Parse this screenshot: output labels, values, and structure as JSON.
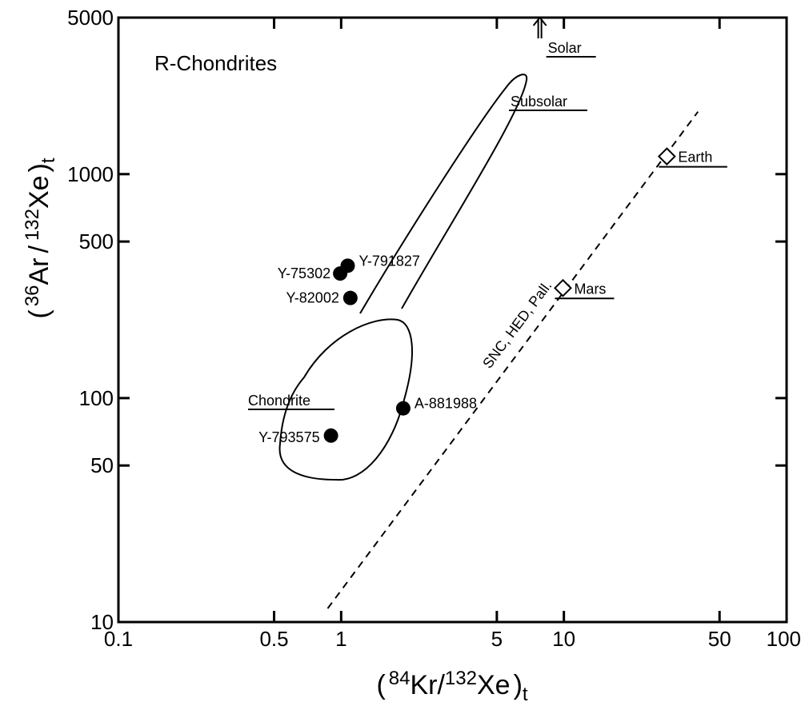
{
  "chart_data": {
    "type": "scatter",
    "title": "R-Chondrites",
    "xlabel": {
      "pre": "(",
      "iso1": "84",
      "el1": "Kr",
      "sep": "/",
      "iso2": "132",
      "el2": "Xe",
      "post": ")",
      "sub": "t"
    },
    "ylabel": {
      "pre": "(",
      "iso1": "36",
      "el1": "Ar",
      "sep": "/",
      "iso2": "132",
      "el2": "Xe",
      "post": ")",
      "sub": "t"
    },
    "xscale": "log",
    "yscale": "log",
    "xlim": [
      0.1,
      100
    ],
    "ylim": [
      10,
      5000
    ],
    "xticks": [
      {
        "v": 0.1,
        "label": "0.1"
      },
      {
        "v": 0.5,
        "label": "0.5"
      },
      {
        "v": 1,
        "label": "1"
      },
      {
        "v": 5,
        "label": "5"
      },
      {
        "v": 10,
        "label": "10"
      },
      {
        "v": 50,
        "label": "50"
      },
      {
        "v": 100,
        "label": "100"
      }
    ],
    "yticks": [
      {
        "v": 10,
        "label": "10"
      },
      {
        "v": 50,
        "label": "50"
      },
      {
        "v": 100,
        "label": "100"
      },
      {
        "v": 500,
        "label": "500"
      },
      {
        "v": 1000,
        "label": "1000"
      },
      {
        "v": 5000,
        "label": "5000"
      }
    ],
    "grid": false,
    "meteorites": [
      {
        "name": "Y-791827",
        "x": 1.07,
        "y": 390
      },
      {
        "name": "Y-75302",
        "x": 0.99,
        "y": 360
      },
      {
        "name": "Y-82002",
        "x": 1.1,
        "y": 280
      },
      {
        "name": "A-881988",
        "x": 1.9,
        "y": 90
      },
      {
        "name": "Y-793575",
        "x": 0.9,
        "y": 68
      }
    ],
    "reference_points": [
      {
        "name": "Earth",
        "x": 29,
        "y": 1200
      },
      {
        "name": "Mars",
        "x": 9.9,
        "y": 310
      }
    ],
    "solar": {
      "name": "Solar",
      "x": 7.8
    },
    "trend_line": {
      "label": "SNC, HED, Pall.",
      "x1": 0.87,
      "y1": 11.5,
      "x2": 40,
      "y2": 1900
    },
    "regions": [
      {
        "name": "Chondrite"
      },
      {
        "name": "Subsolar"
      }
    ]
  }
}
